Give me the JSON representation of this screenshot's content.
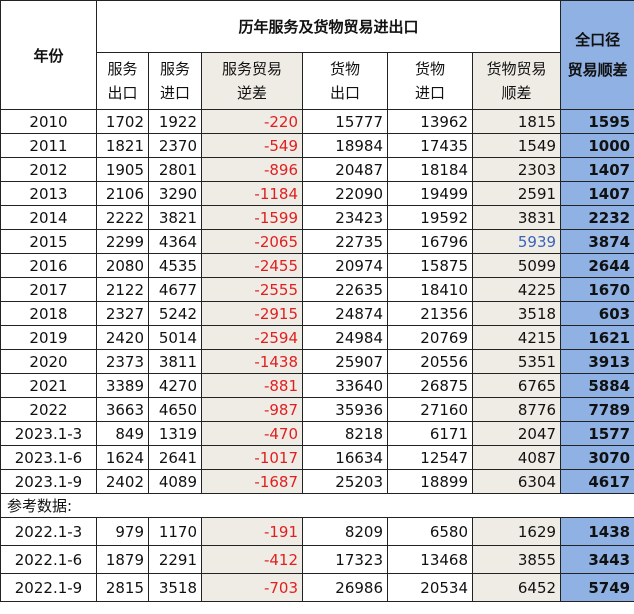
{
  "header": {
    "year": "年份",
    "group_title": "历年服务及货物贸易进出口",
    "total_line1": "全口径",
    "total_line2": "贸易顺差",
    "cols": [
      {
        "line1": "服务",
        "line2": "出口"
      },
      {
        "line1": "服务",
        "line2": "进口"
      },
      {
        "line1": "服务贸易",
        "line2": "逆差"
      },
      {
        "line1": "货物",
        "line2": "出口"
      },
      {
        "line1": "货物",
        "line2": "进口"
      },
      {
        "line1": "货物贸易",
        "line2": "顺差"
      }
    ]
  },
  "rows": [
    {
      "year": "2010",
      "se": "1702",
      "si": "1922",
      "sd": "-220",
      "ge": "15777",
      "gi": "13962",
      "gs": "1815",
      "total": "1595"
    },
    {
      "year": "2011",
      "se": "1821",
      "si": "2370",
      "sd": "-549",
      "ge": "18984",
      "gi": "17435",
      "gs": "1549",
      "total": "1000"
    },
    {
      "year": "2012",
      "se": "1905",
      "si": "2801",
      "sd": "-896",
      "ge": "20487",
      "gi": "18184",
      "gs": "2303",
      "total": "1407"
    },
    {
      "year": "2013",
      "se": "2106",
      "si": "3290",
      "sd": "-1184",
      "ge": "22090",
      "gi": "19499",
      "gs": "2591",
      "total": "1407"
    },
    {
      "year": "2014",
      "se": "2222",
      "si": "3821",
      "sd": "-1599",
      "ge": "23423",
      "gi": "19592",
      "gs": "3831",
      "total": "2232"
    },
    {
      "year": "2015",
      "se": "2299",
      "si": "4364",
      "sd": "-2065",
      "ge": "22735",
      "gi": "16796",
      "gs": "5939",
      "total": "3874"
    },
    {
      "year": "2016",
      "se": "2080",
      "si": "4535",
      "sd": "-2455",
      "ge": "20974",
      "gi": "15875",
      "gs": "5099",
      "total": "2644"
    },
    {
      "year": "2017",
      "se": "2122",
      "si": "4677",
      "sd": "-2555",
      "ge": "22635",
      "gi": "18410",
      "gs": "4225",
      "total": "1670"
    },
    {
      "year": "2018",
      "se": "2327",
      "si": "5242",
      "sd": "-2915",
      "ge": "24874",
      "gi": "21356",
      "gs": "3518",
      "total": "603"
    },
    {
      "year": "2019",
      "se": "2420",
      "si": "5014",
      "sd": "-2594",
      "ge": "24984",
      "gi": "20769",
      "gs": "4215",
      "total": "1621"
    },
    {
      "year": "2020",
      "se": "2373",
      "si": "3811",
      "sd": "-1438",
      "ge": "25907",
      "gi": "20556",
      "gs": "5351",
      "total": "3913"
    },
    {
      "year": "2021",
      "se": "3389",
      "si": "4270",
      "sd": "-881",
      "ge": "33640",
      "gi": "26875",
      "gs": "6765",
      "total": "5884"
    },
    {
      "year": "2022",
      "se": "3663",
      "si": "4650",
      "sd": "-987",
      "ge": "35936",
      "gi": "27160",
      "gs": "8776",
      "total": "7789"
    },
    {
      "year": "2023.1-3",
      "se": "849",
      "si": "1319",
      "sd": "-470",
      "ge": "8218",
      "gi": "6171",
      "gs": "2047",
      "total": "1577"
    },
    {
      "year": "2023.1-6",
      "se": "1624",
      "si": "2641",
      "sd": "-1017",
      "ge": "16634",
      "gi": "12547",
      "gs": "4087",
      "total": "3070"
    },
    {
      "year": "2023.1-9",
      "se": "2402",
      "si": "4089",
      "sd": "-1687",
      "ge": "25203",
      "gi": "18899",
      "gs": "6304",
      "total": "4617"
    }
  ],
  "reference": {
    "label": "参考数据:",
    "rows": [
      {
        "year": "2022.1-3",
        "se": "979",
        "si": "1170",
        "sd": "-191",
        "ge": "8209",
        "gi": "6580",
        "gs": "1629",
        "total": "1438"
      },
      {
        "year": "2022.1-6",
        "se": "1879",
        "si": "2291",
        "sd": "-412",
        "ge": "17323",
        "gi": "13468",
        "gs": "3855",
        "total": "3443"
      },
      {
        "year": "2022.1-9",
        "se": "2815",
        "si": "3518",
        "sd": "-703",
        "ge": "26986",
        "gi": "20534",
        "gs": "6452",
        "total": "5749"
      }
    ]
  },
  "colors": {
    "negative_text": "#e02020",
    "shaded_cell": "#efece6",
    "total_column": "#8fb1e3",
    "highlight_value": "#3a63b8"
  },
  "highlight": {
    "row_year": "2015",
    "column": "gs"
  }
}
